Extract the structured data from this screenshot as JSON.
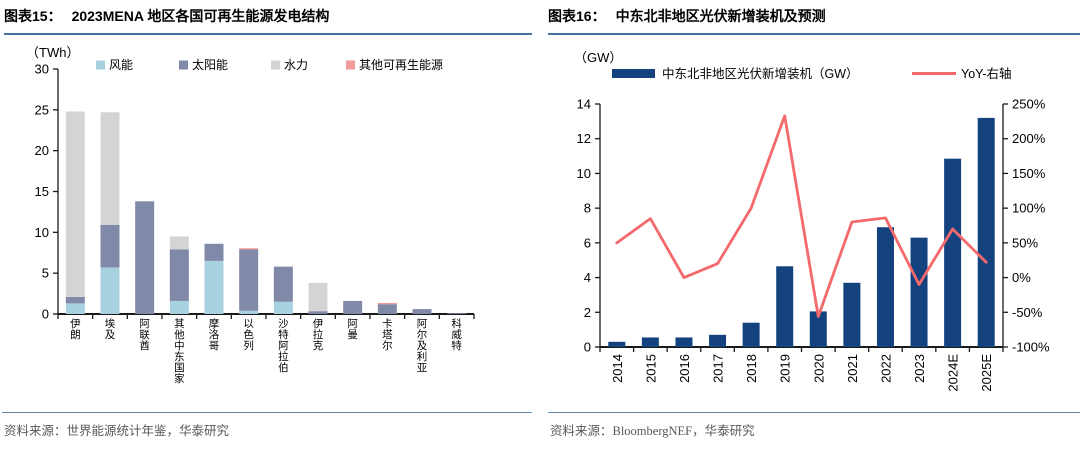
{
  "theme": {
    "header_rule_color": "#41719C",
    "footer_rule_color": "#6288AD",
    "source_text_color": "#595959",
    "axis_color": "#1A1A1A",
    "bar_accent": "#14427E",
    "line_accent": "#F4696B"
  },
  "figures": [
    {
      "label": "图表15：",
      "title": "2023MENA 地区各国可再生能源发电结构",
      "source": "资料来源：世界能源统计年鉴，华泰研究"
    },
    {
      "label": "图表16：",
      "title": "中东北非地区光伏新增装机及预测",
      "source": "资料来源：BloombergNEF，华泰研究"
    }
  ],
  "chart_data": [
    {
      "type": "bar",
      "stacked": true,
      "title": "2023MENA 地区各国可再生能源发电结构",
      "unit_label": "（TWh）",
      "categories": [
        "伊朗",
        "埃及",
        "阿联酋",
        "其他中东国家",
        "摩洛哥",
        "以色列",
        "沙特阿拉伯",
        "伊拉克",
        "阿曼",
        "卡塔尔",
        "阿尔及利亚",
        "科威特"
      ],
      "series": [
        {
          "name": "风能",
          "color": "#A8D1DF",
          "values": [
            1.3,
            5.7,
            0,
            1.6,
            6.5,
            0.4,
            1.5,
            0,
            0,
            0,
            0,
            0
          ]
        },
        {
          "name": "太阳能",
          "color": "#8089A8",
          "values": [
            0.8,
            5.2,
            13.8,
            6.3,
            2.1,
            7.5,
            4.3,
            0.35,
            1.6,
            1.2,
            0.6,
            0.1
          ]
        },
        {
          "name": "水力",
          "color": "#D4D4D4",
          "values": [
            22.7,
            13.8,
            0,
            1.6,
            0,
            0,
            0,
            3.45,
            0,
            0,
            0,
            0
          ]
        },
        {
          "name": "其他可再生能源",
          "color": "#F2999A",
          "values": [
            0,
            0,
            0,
            0,
            0,
            0.15,
            0,
            0,
            0,
            0.15,
            0,
            0
          ]
        }
      ],
      "ylabel": "（TWh）",
      "ylim": [
        0,
        30
      ],
      "ytick_step": 5,
      "grid": false,
      "legend_position": "top"
    },
    {
      "type": "bar+line",
      "title": "中东北非地区光伏新增装机及预测",
      "unit_label": "（GW）",
      "categories": [
        "2014",
        "2015",
        "2016",
        "2017",
        "2018",
        "2019",
        "2020",
        "2021",
        "2022",
        "2023",
        "2024E",
        "2025E"
      ],
      "series": [
        {
          "name": "中东北非地区光伏新增装机（GW）",
          "type": "bar",
          "axis": "left",
          "color": "#14427E",
          "values": [
            0.3,
            0.55,
            0.55,
            0.7,
            1.4,
            4.65,
            2.05,
            3.7,
            6.9,
            6.3,
            10.85,
            13.2
          ]
        },
        {
          "name": "YoY-右轴",
          "type": "line",
          "axis": "right",
          "color": "#F4696B",
          "values": [
            50,
            85,
            0,
            20,
            100,
            233,
            -56,
            80,
            86,
            -10,
            70,
            22
          ]
        }
      ],
      "left_ylim": [
        0,
        14
      ],
      "left_ytick_step": 2,
      "right_ylim": [
        -100,
        250
      ],
      "right_ytick_step": 50,
      "right_tick_suffix": "%",
      "grid": false,
      "legend_position": "top"
    }
  ]
}
